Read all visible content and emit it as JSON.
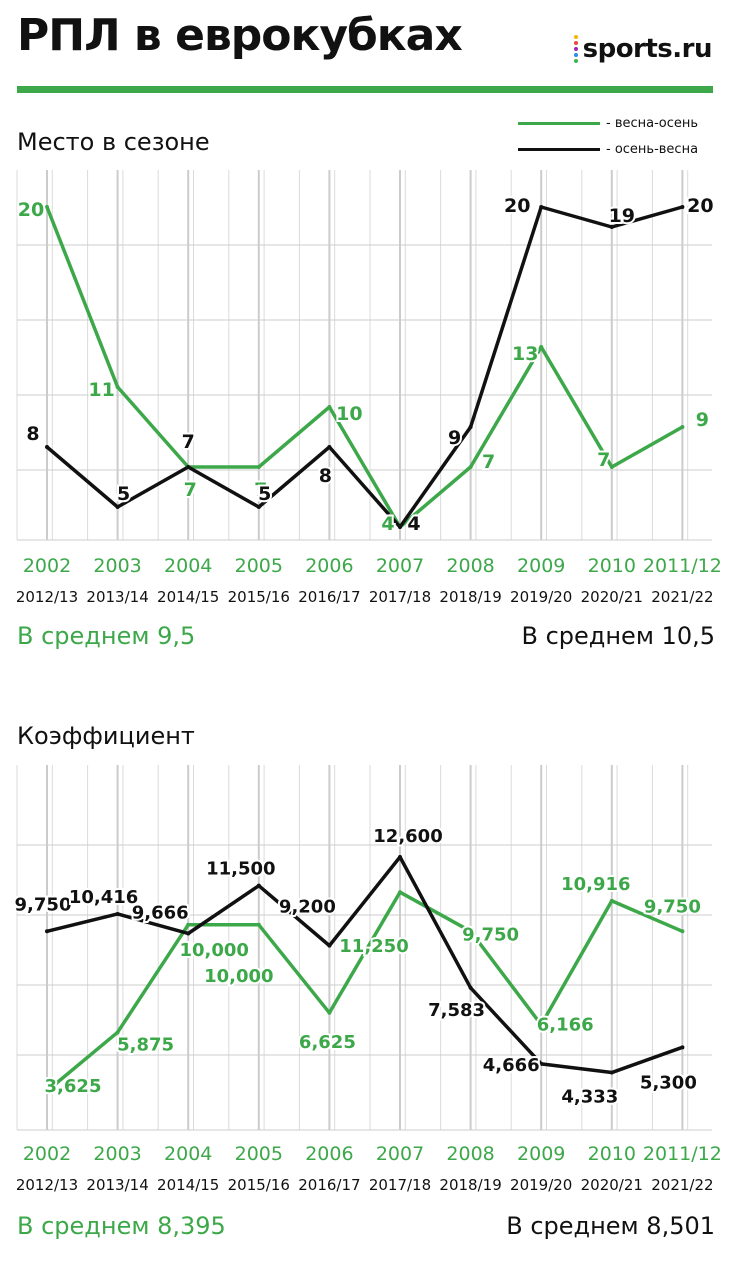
{
  "header": {
    "title": "РПЛ в еврокубках",
    "logo_text": "sports.ru",
    "logo_dot_colors": [
      "#f7b500",
      "#ea4a3c",
      "#9c27b0",
      "#2b8df0",
      "#3ab54a"
    ]
  },
  "colors": {
    "green": "#3da84a",
    "black": "#111111",
    "grid": "#cccccc",
    "rule": "#3da84a"
  },
  "legend": {
    "spring_autumn": "- весна-осень",
    "autumn_spring": "- осень-весна"
  },
  "chart_data": [
    {
      "type": "line",
      "title": "Место в сезоне",
      "ylim": [
        20,
        4
      ],
      "y_inverted": true,
      "grid": true,
      "categories_top": [
        "2002",
        "2003",
        "2004",
        "2005",
        "2006",
        "2007",
        "2008",
        "2009",
        "2010",
        "2011/12"
      ],
      "categories_bottom": [
        "2012/13",
        "2013/14",
        "2014/15",
        "2015/16",
        "2016/17",
        "2017/18",
        "2018/19",
        "2019/20",
        "2020/21",
        "2021/22"
      ],
      "series": [
        {
          "name": "весна-осень",
          "color": "#3da84a",
          "values": [
            20,
            11,
            7,
            7,
            10,
            4,
            7,
            13,
            7,
            9
          ],
          "labels": [
            "20",
            "11",
            "7",
            "7",
            "10",
            "4",
            "7",
            "13",
            "7",
            "9"
          ]
        },
        {
          "name": "осень-весна",
          "color": "#111111",
          "values": [
            8,
            5,
            7,
            5,
            8,
            4,
            9,
            20,
            19,
            20
          ],
          "labels": [
            "8",
            "5",
            "7",
            "5",
            "8",
            "4",
            "9",
            "20",
            "19",
            "20"
          ]
        }
      ],
      "averages": {
        "spring_autumn": "В среднем 9,5",
        "autumn_spring": "В среднем 10,5"
      }
    },
    {
      "type": "line",
      "title": "Коэффициент",
      "ylim": [
        1.5,
        15
      ],
      "grid": true,
      "categories_top": [
        "2002",
        "2003",
        "2004",
        "2005",
        "2006",
        "2007",
        "2008",
        "2009",
        "2010",
        "2011/12"
      ],
      "categories_bottom": [
        "2012/13",
        "2013/14",
        "2014/15",
        "2015/16",
        "2016/17",
        "2017/18",
        "2018/19",
        "2019/20",
        "2020/21",
        "2021/22"
      ],
      "series": [
        {
          "name": "весна-осень",
          "color": "#3da84a",
          "values": [
            3.625,
            5.875,
            10.0,
            10.0,
            6.625,
            11.25,
            9.75,
            6.166,
            10.916,
            9.75
          ],
          "labels": [
            "3,625",
            "5,875",
            "10,000",
            "10,000",
            "6,625",
            "11,250",
            "9,750",
            "6,166",
            "10,916",
            "9,750"
          ]
        },
        {
          "name": "осень-весна",
          "color": "#111111",
          "values": [
            9.75,
            10.416,
            9.666,
            11.5,
            9.2,
            12.6,
            7.583,
            4.666,
            4.333,
            5.3
          ],
          "labels": [
            "9,750",
            "10,416",
            "9,666",
            "11,500",
            "9,200",
            "12,600",
            "7,583",
            "4,666",
            "4,333",
            "5,300"
          ]
        }
      ],
      "averages": {
        "spring_autumn": "В среднем 8,395",
        "autumn_spring": "В среднем 8,501"
      }
    }
  ]
}
